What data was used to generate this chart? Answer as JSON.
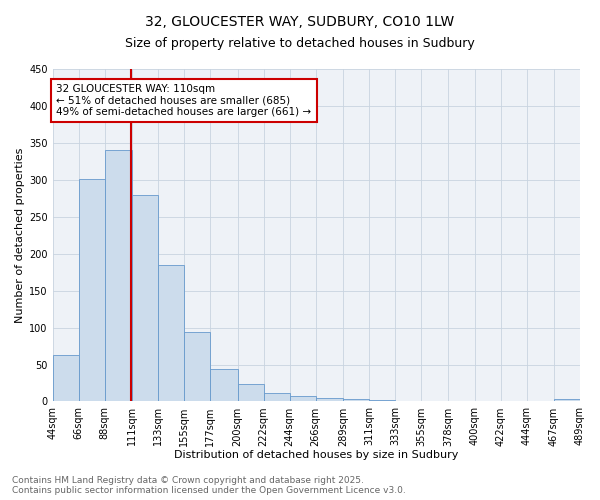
{
  "title": "32, GLOUCESTER WAY, SUDBURY, CO10 1LW",
  "subtitle": "Size of property relative to detached houses in Sudbury",
  "xlabel": "Distribution of detached houses by size in Sudbury",
  "ylabel": "Number of detached properties",
  "bar_color": "#ccdcec",
  "bar_edge_color": "#6699cc",
  "grid_color": "#c8d4e0",
  "background_color": "#eef2f7",
  "vline_x": 110,
  "vline_color": "#cc0000",
  "annotation_text": "32 GLOUCESTER WAY: 110sqm\n← 51% of detached houses are smaller (685)\n49% of semi-detached houses are larger (661) →",
  "annotation_box_color": "#cc0000",
  "bins": [
    44,
    66,
    88,
    111,
    133,
    155,
    177,
    200,
    222,
    244,
    266,
    289,
    311,
    333,
    355,
    378,
    400,
    422,
    444,
    467,
    489
  ],
  "bar_heights": [
    63,
    301,
    341,
    280,
    185,
    94,
    44,
    23,
    12,
    8,
    5,
    4,
    2,
    1,
    1,
    1,
    0,
    0,
    0,
    3
  ],
  "xlim_labels": [
    "44sqm",
    "66sqm",
    "88sqm",
    "111sqm",
    "133sqm",
    "155sqm",
    "177sqm",
    "200sqm",
    "222sqm",
    "244sqm",
    "266sqm",
    "289sqm",
    "311sqm",
    "333sqm",
    "355sqm",
    "378sqm",
    "400sqm",
    "422sqm",
    "444sqm",
    "467sqm",
    "489sqm"
  ],
  "ylim": [
    0,
    450
  ],
  "yticks": [
    0,
    50,
    100,
    150,
    200,
    250,
    300,
    350,
    400,
    450
  ],
  "footer_text": "Contains HM Land Registry data © Crown copyright and database right 2025.\nContains public sector information licensed under the Open Government Licence v3.0.",
  "title_fontsize": 10,
  "subtitle_fontsize": 9,
  "label_fontsize": 8,
  "tick_fontsize": 7,
  "annotation_fontsize": 7.5,
  "footer_fontsize": 6.5
}
